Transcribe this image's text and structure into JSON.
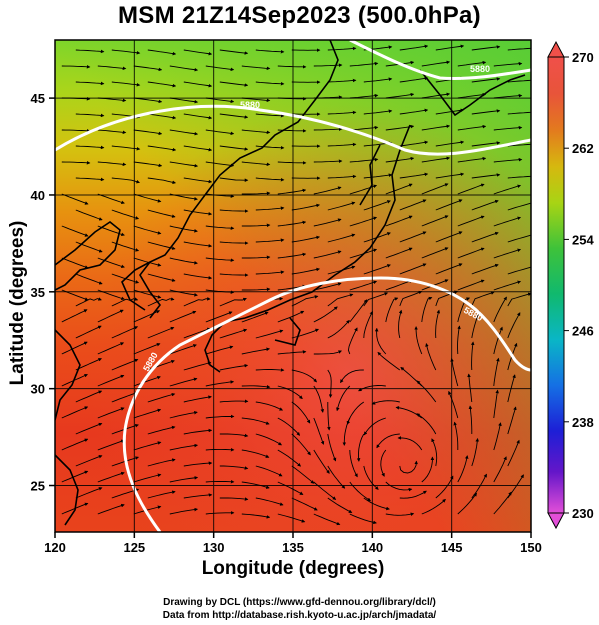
{
  "title": "MSM 21Z14Sep2023 (500.0hPa)",
  "x_axis": {
    "label": "Longitude (degrees)",
    "range": [
      120,
      150
    ],
    "ticks": [
      "120",
      "125",
      "130",
      "135",
      "140",
      "145",
      "150"
    ],
    "tick_values": [
      120,
      125,
      130,
      135,
      140,
      145,
      150
    ]
  },
  "y_axis": {
    "label": "Latitude  (degrees)",
    "range": [
      22.6,
      48
    ],
    "ticks": [
      "25",
      "30",
      "35",
      "40",
      "45"
    ],
    "tick_values": [
      25,
      30,
      35,
      40,
      45
    ]
  },
  "colorbar": {
    "min": 230,
    "max": 270,
    "tick_labels": [
      "270",
      "262",
      "254",
      "246",
      "238",
      "230"
    ],
    "tick_values": [
      270,
      262,
      254,
      246,
      238,
      230
    ]
  },
  "contours": [
    {
      "label": "5880",
      "color": "#ffffff"
    },
    {
      "label": "5880",
      "color": "#ffffff"
    },
    {
      "label": "5880",
      "color": "#ffffff"
    },
    {
      "label": "5880",
      "color": "#ffffff"
    }
  ],
  "credits": {
    "line1": "Drawing by DCL (https://www.gfd-dennou.org/library/dcl/)",
    "line2": "Data from http://database.rish.kyoto-u.ac.jp/arch/jmadata/"
  }
}
